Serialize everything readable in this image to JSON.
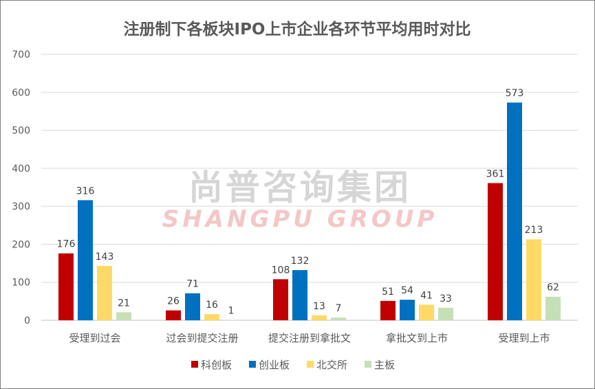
{
  "chart_data": {
    "type": "bar",
    "title": "注册制下各板块IPO上市企业各环节平均用时对比",
    "xlabel": "",
    "ylabel": "",
    "ylim": [
      0,
      700
    ],
    "yticks": [
      0,
      100,
      200,
      300,
      400,
      500,
      600,
      700
    ],
    "grid": true,
    "legend_position": "bottom",
    "categories": [
      "受理到过会",
      "过会到提交注册",
      "提交注册到拿批文",
      "拿批文到上市",
      "受理到上市"
    ],
    "series": [
      {
        "name": "科创板",
        "color": "#C00000",
        "values": [
          176,
          26,
          108,
          51,
          361
        ]
      },
      {
        "name": "创业板",
        "color": "#0070C0",
        "values": [
          316,
          71,
          132,
          54,
          573
        ]
      },
      {
        "name": "北交所",
        "color": "#FFD966",
        "values": [
          143,
          16,
          13,
          41,
          213
        ]
      },
      {
        "name": "主板",
        "color": "#C5E0B4",
        "values": [
          21,
          1,
          7,
          33,
          62
        ]
      }
    ]
  },
  "watermark": {
    "cn": "尚普咨询集团",
    "en": "SHANGPU GROUP"
  }
}
